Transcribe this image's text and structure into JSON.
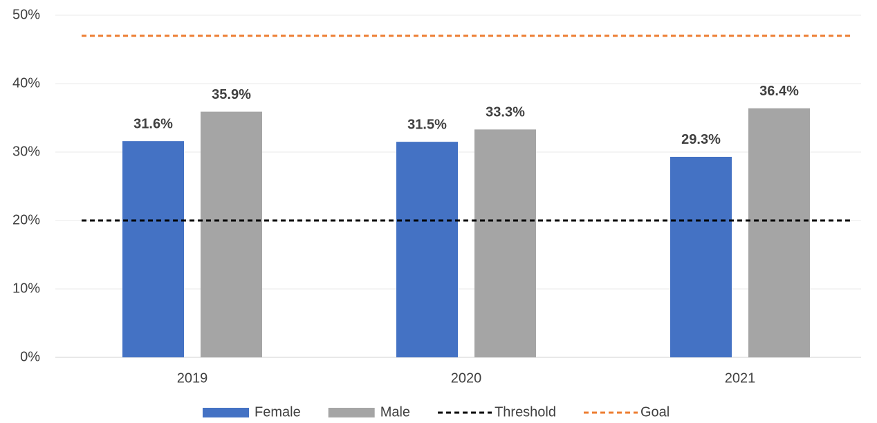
{
  "chart_data": {
    "type": "bar",
    "categories": [
      "2019",
      "2020",
      "2021"
    ],
    "series": [
      {
        "name": "Female",
        "color": "#4472c4",
        "values": [
          31.6,
          31.5,
          29.3
        ],
        "value_labels": [
          "31.6%",
          "31.5%",
          "29.3%"
        ]
      },
      {
        "name": "Male",
        "color": "#a5a5a5",
        "values": [
          35.9,
          33.3,
          36.4
        ],
        "value_labels": [
          "35.9%",
          "33.3%",
          "36.4%"
        ]
      }
    ],
    "reference_lines": [
      {
        "name": "Threshold",
        "color": "#000000",
        "value": 20
      },
      {
        "name": "Goal",
        "color": "#ed7d31",
        "value": 47
      }
    ],
    "ylim": [
      0,
      50
    ],
    "yticks": [
      {
        "value": 0,
        "label": "0%"
      },
      {
        "value": 10,
        "label": "10%"
      },
      {
        "value": 20,
        "label": "20%"
      },
      {
        "value": 30,
        "label": "30%"
      },
      {
        "value": 40,
        "label": "40%"
      },
      {
        "value": 50,
        "label": "50%"
      }
    ],
    "grid": true,
    "legend": "bottom"
  }
}
